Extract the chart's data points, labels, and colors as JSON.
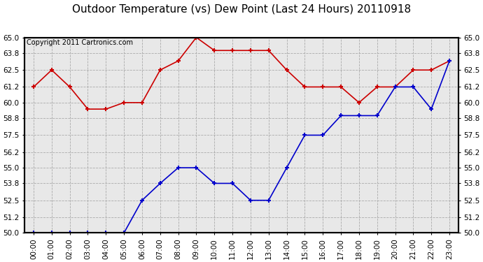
{
  "title": "Outdoor Temperature (vs) Dew Point (Last 24 Hours) 20110918",
  "copyright_text": "Copyright 2011 Cartronics.com",
  "hours": [
    "00:00",
    "01:00",
    "02:00",
    "03:00",
    "04:00",
    "05:00",
    "06:00",
    "07:00",
    "08:00",
    "09:00",
    "10:00",
    "11:00",
    "12:00",
    "13:00",
    "14:00",
    "15:00",
    "16:00",
    "17:00",
    "18:00",
    "19:00",
    "20:00",
    "21:00",
    "22:00",
    "23:00"
  ],
  "temp_red": [
    61.2,
    62.5,
    61.2,
    59.5,
    59.5,
    60.0,
    60.0,
    62.5,
    63.2,
    65.0,
    64.0,
    64.0,
    64.0,
    64.0,
    62.5,
    61.2,
    61.2,
    61.2,
    60.0,
    61.2,
    61.2,
    62.5,
    62.5,
    63.2
  ],
  "temp_blue": [
    50.0,
    50.0,
    50.0,
    50.0,
    50.0,
    50.0,
    52.5,
    53.8,
    55.0,
    55.0,
    53.8,
    53.8,
    52.5,
    52.5,
    55.0,
    57.5,
    57.5,
    59.0,
    59.0,
    59.0,
    61.2,
    61.2,
    59.5,
    63.2
  ],
  "ylim": [
    50.0,
    65.0
  ],
  "yticks": [
    50.0,
    51.2,
    52.5,
    53.8,
    55.0,
    56.2,
    57.5,
    58.8,
    60.0,
    61.2,
    62.5,
    63.8,
    65.0
  ],
  "red_color": "#cc0000",
  "blue_color": "#0000cc",
  "bg_color": "#ffffff",
  "plot_bg_color": "#e8e8e8",
  "grid_color": "#aaaaaa",
  "title_fontsize": 11,
  "copyright_fontsize": 7,
  "tick_fontsize": 7.5
}
